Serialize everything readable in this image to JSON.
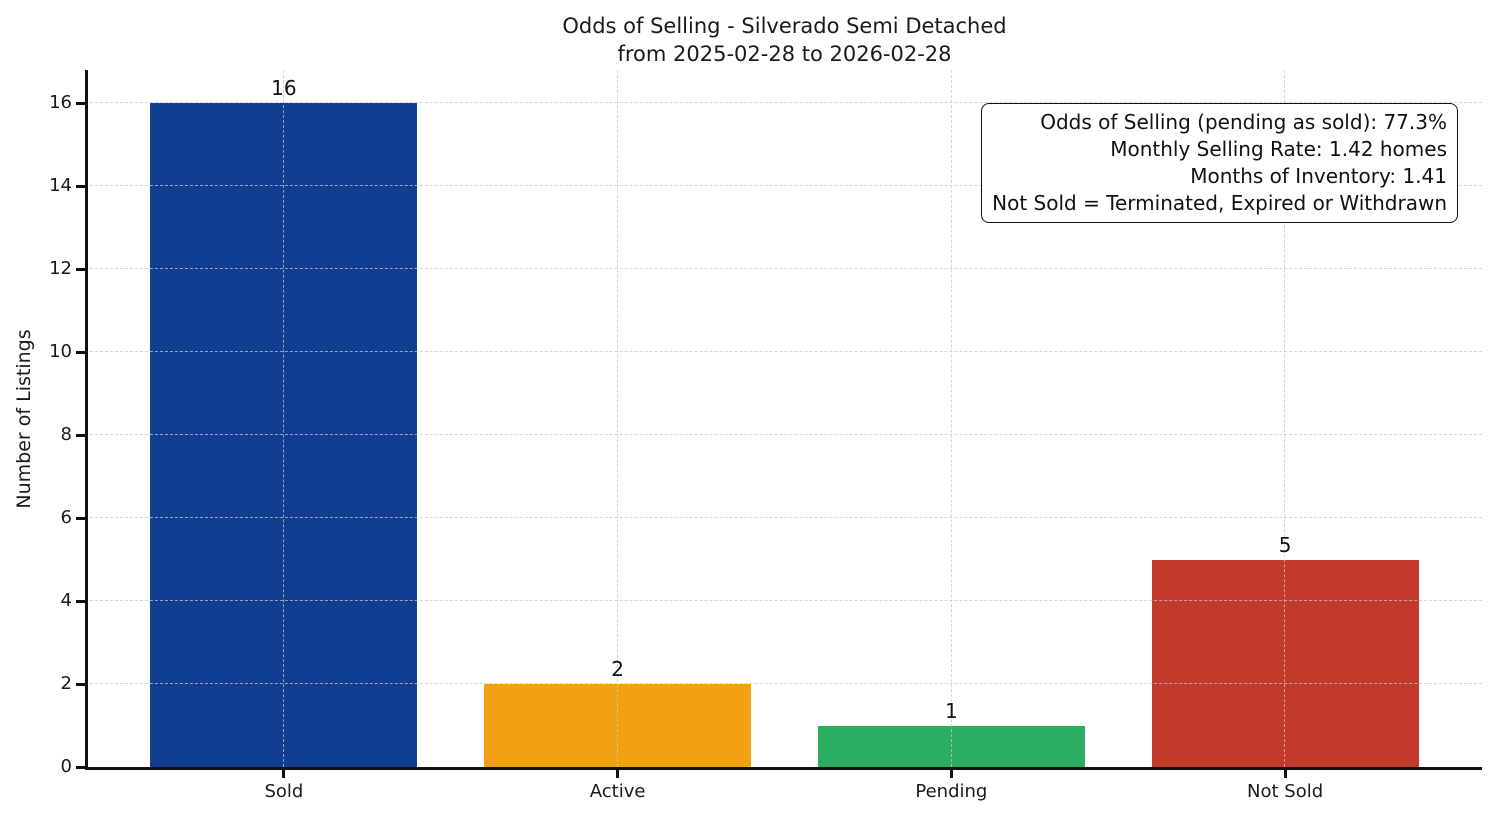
{
  "chart_data": {
    "type": "bar",
    "title": "Odds of Selling - Silverado Semi Detached",
    "subtitle": "from 2025-02-28 to 2026-02-28",
    "categories": [
      "Sold",
      "Active",
      "Pending",
      "Not Sold"
    ],
    "values": [
      16,
      2,
      1,
      5
    ],
    "bar_colors": [
      "#123e92",
      "#f2a113",
      "#2bad62",
      "#c23a2b"
    ],
    "xlabel": "",
    "ylabel": "Number of Listings",
    "ylim": [
      0,
      16.8
    ],
    "yticks": [
      0,
      2,
      4,
      6,
      8,
      10,
      12,
      14,
      16
    ],
    "grid": {
      "visible": true,
      "style": "dashed",
      "color": "#cccccc",
      "axis": "both",
      "drawn_above_bars": true
    },
    "legend": "none",
    "annotation_box": {
      "position": "top-right",
      "text_align": "right",
      "lines": [
        "Odds of Selling (pending as sold): 77.3%",
        "Monthly Selling Rate: 1.42 homes",
        "Months of Inventory: 1.41",
        "Not Sold = Terminated, Expired or Withdrawn"
      ]
    }
  }
}
